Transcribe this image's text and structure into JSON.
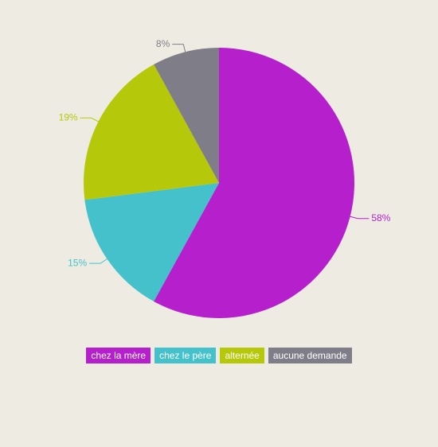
{
  "chart_data": {
    "type": "pie",
    "categories": [
      "chez la mère",
      "chez le père",
      "alternée",
      "aucune demande"
    ],
    "values": [
      58,
      15,
      19,
      8
    ],
    "value_labels": [
      "58%",
      "15%",
      "19%",
      "8%"
    ],
    "colors": [
      "#b51fcc",
      "#45c1cc",
      "#b5c90a",
      "#7f7d88"
    ]
  }
}
